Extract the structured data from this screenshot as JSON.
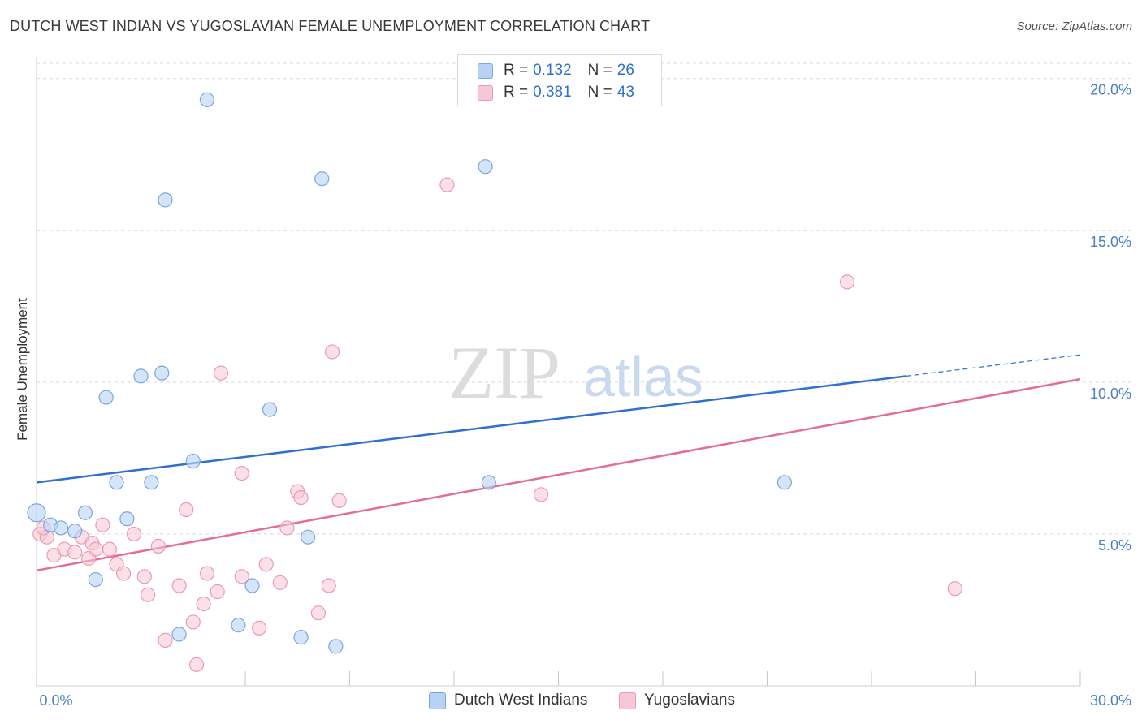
{
  "header": {
    "title": "DUTCH WEST INDIAN VS YUGOSLAVIAN FEMALE UNEMPLOYMENT CORRELATION CHART",
    "source": "Source: ZipAtlas.com"
  },
  "watermark": {
    "zip": "ZIP",
    "atlas": "atlas"
  },
  "legend": {
    "series": [
      {
        "r_label": "R =",
        "r_value": "0.132",
        "n_label": "N =",
        "n_value": "26"
      },
      {
        "r_label": "R =",
        "r_value": "0.381",
        "n_label": "N =",
        "n_value": "43"
      }
    ]
  },
  "bottom_legend": {
    "dutch": "Dutch West Indians",
    "yugo": "Yugoslavians"
  },
  "colors": {
    "blue_fill": "#b8d2f5",
    "blue_stroke": "#7aa6e0",
    "blue_line": "#2e6fd1",
    "pink_fill": "#f8c7d6",
    "pink_stroke": "#ec9ab3",
    "pink_line": "#e46d96",
    "grid": "#d8d8d8",
    "tick_text": "#4a7fc7"
  },
  "chart_data": {
    "type": "scatter",
    "title": "DUTCH WEST INDIAN VS YUGOSLAVIAN FEMALE UNEMPLOYMENT CORRELATION CHART",
    "xlabel": "",
    "ylabel": "Female Unemployment",
    "xlim": [
      0,
      30
    ],
    "ylim": [
      0,
      20.5
    ],
    "x_tick_labels": [
      "0.0%",
      "30.0%"
    ],
    "y_ticks": [
      5,
      10,
      15,
      20
    ],
    "y_tick_labels": [
      "5.0%",
      "10.0%",
      "15.0%",
      "20.0%"
    ],
    "grid": true,
    "series": [
      {
        "name": "Dutch West Indians",
        "r": 0.132,
        "n": 26,
        "trend": {
          "x0": 0,
          "y0": 6.7,
          "x1": 25,
          "y1": 10.2,
          "dash_x1": 30,
          "dash_y1": 10.9
        },
        "points": [
          [
            4.9,
            19.3
          ],
          [
            8.2,
            16.7
          ],
          [
            12.9,
            17.1
          ],
          [
            3.7,
            16.0
          ],
          [
            2.0,
            9.5
          ],
          [
            3.0,
            10.2
          ],
          [
            3.6,
            10.3
          ],
          [
            6.7,
            9.1
          ],
          [
            4.5,
            7.4
          ],
          [
            2.3,
            6.7
          ],
          [
            3.3,
            6.7
          ],
          [
            13.0,
            6.7
          ],
          [
            21.5,
            6.7
          ],
          [
            0.0,
            5.7
          ],
          [
            0.4,
            5.3
          ],
          [
            0.7,
            5.2
          ],
          [
            1.1,
            5.1
          ],
          [
            1.4,
            5.7
          ],
          [
            2.6,
            5.5
          ],
          [
            7.8,
            4.9
          ],
          [
            1.7,
            3.5
          ],
          [
            6.2,
            3.3
          ],
          [
            5.8,
            2.0
          ],
          [
            4.1,
            1.7
          ],
          [
            7.6,
            1.6
          ],
          [
            8.6,
            1.3
          ]
        ]
      },
      {
        "name": "Yugoslavians",
        "r": 0.381,
        "n": 43,
        "trend": {
          "x0": 0,
          "y0": 3.8,
          "x1": 30,
          "y1": 10.1
        },
        "points": [
          [
            11.8,
            16.5
          ],
          [
            23.3,
            13.3
          ],
          [
            8.5,
            11.0
          ],
          [
            5.3,
            10.3
          ],
          [
            5.9,
            7.0
          ],
          [
            7.5,
            6.4
          ],
          [
            7.6,
            6.2
          ],
          [
            8.7,
            6.1
          ],
          [
            14.5,
            6.3
          ],
          [
            4.3,
            5.8
          ],
          [
            1.9,
            5.3
          ],
          [
            7.2,
            5.2
          ],
          [
            0.1,
            5.0
          ],
          [
            0.3,
            4.9
          ],
          [
            1.3,
            4.9
          ],
          [
            1.6,
            4.7
          ],
          [
            2.8,
            5.0
          ],
          [
            3.5,
            4.6
          ],
          [
            0.5,
            4.3
          ],
          [
            0.8,
            4.5
          ],
          [
            1.1,
            4.4
          ],
          [
            1.5,
            4.2
          ],
          [
            1.7,
            4.5
          ],
          [
            2.1,
            4.5
          ],
          [
            2.3,
            4.0
          ],
          [
            2.5,
            3.7
          ],
          [
            3.1,
            3.6
          ],
          [
            4.9,
            3.7
          ],
          [
            5.9,
            3.6
          ],
          [
            6.6,
            4.0
          ],
          [
            7.0,
            3.4
          ],
          [
            8.4,
            3.3
          ],
          [
            4.1,
            3.3
          ],
          [
            5.2,
            3.1
          ],
          [
            3.2,
            3.0
          ],
          [
            4.8,
            2.7
          ],
          [
            8.1,
            2.4
          ],
          [
            4.5,
            2.1
          ],
          [
            6.4,
            1.9
          ],
          [
            3.7,
            1.5
          ],
          [
            4.6,
            0.7
          ],
          [
            26.4,
            3.2
          ],
          [
            0.2,
            5.2
          ]
        ]
      }
    ]
  }
}
